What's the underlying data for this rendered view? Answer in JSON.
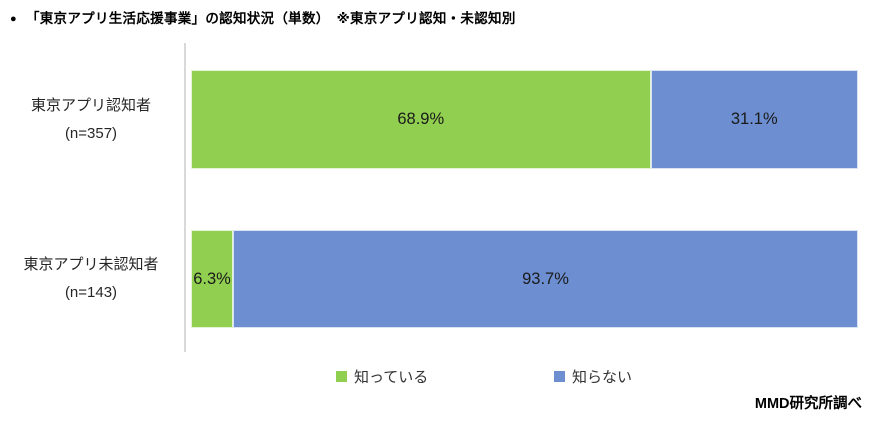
{
  "header": {
    "bullet": "●",
    "title": "「東京アプリ生活応援事業」の認知状況（単数）　※東京アプリ認知・未認知別"
  },
  "source_note": "MMD研究所調べ",
  "chart_data": {
    "type": "bar",
    "subtype": "horizontal-stacked",
    "unit": "%",
    "xlim": [
      0,
      100
    ],
    "grid": false,
    "legend_position": "bottom",
    "categories": [
      {
        "label": "東京アプリ認知者",
        "n": "(n=357)"
      },
      {
        "label": "東京アプリ未認知者",
        "n": "(n=143)"
      }
    ],
    "series": [
      {
        "name": "知っている",
        "color": "#90CF4F",
        "values": [
          68.9,
          6.3
        ]
      },
      {
        "name": "知らない",
        "color": "#6D8FD1",
        "values": [
          31.1,
          93.7
        ]
      }
    ],
    "value_labels": [
      [
        "68.9%",
        "31.1%"
      ],
      [
        "6.3%",
        "93.7%"
      ]
    ]
  }
}
